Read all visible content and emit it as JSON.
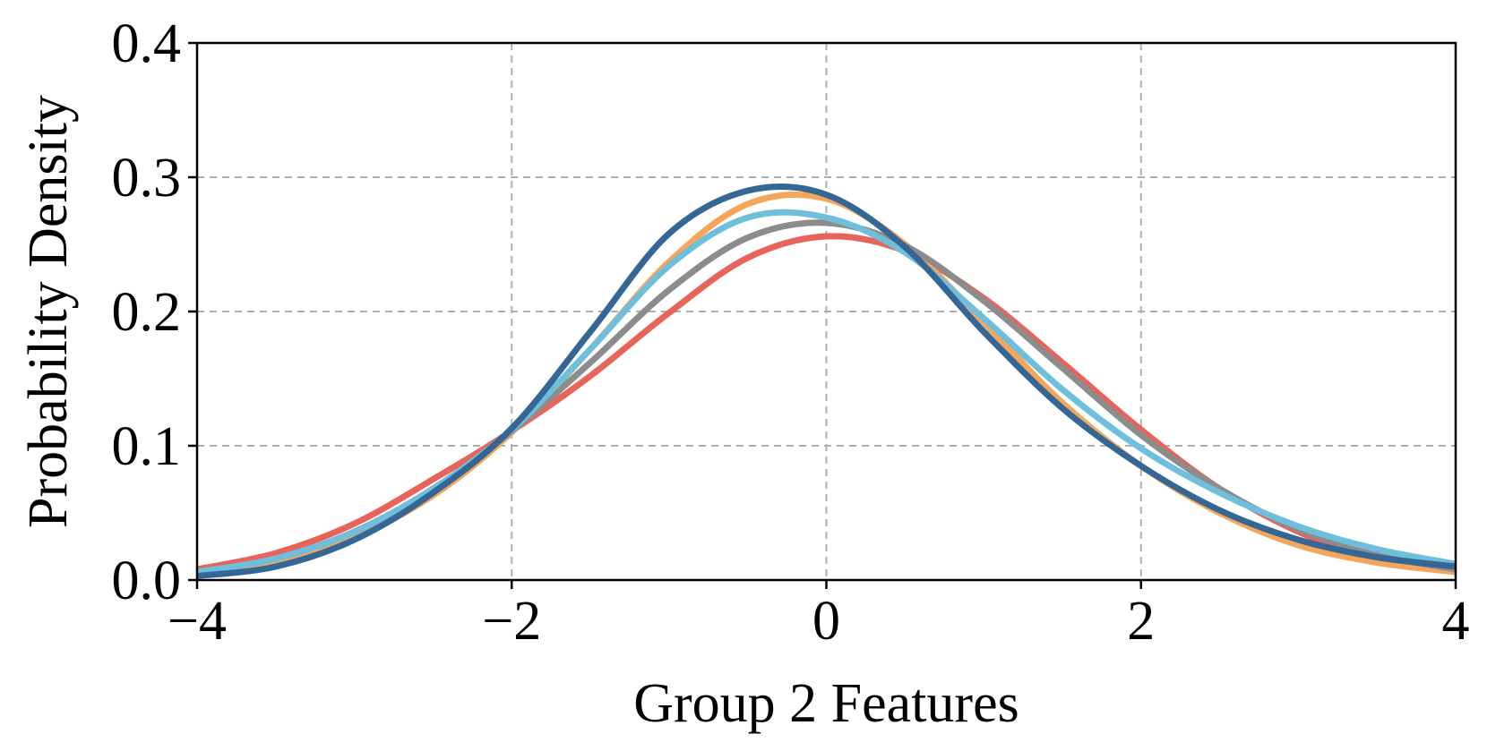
{
  "chart_data": {
    "type": "line",
    "xlabel": "Group 2 Features",
    "ylabel": "Probability Density",
    "xlim": [
      -4,
      4
    ],
    "ylim": [
      0,
      0.4
    ],
    "x_ticks": [
      -4,
      -2,
      0,
      2,
      4
    ],
    "x_tick_labels": [
      "−4",
      "−2",
      "0",
      "2",
      "4"
    ],
    "y_ticks": [
      0.0,
      0.1,
      0.2,
      0.3,
      0.4
    ],
    "y_tick_labels": [
      "0.0",
      "0.1",
      "0.2",
      "0.3",
      "0.4"
    ],
    "grid": true,
    "x": [
      -4.0,
      -3.5,
      -3.0,
      -2.5,
      -2.0,
      -1.5,
      -1.0,
      -0.5,
      0.0,
      0.5,
      1.0,
      1.5,
      2.0,
      2.5,
      3.0,
      3.5,
      4.0
    ],
    "series": [
      {
        "color": "#E8645A",
        "values": [
          0.008,
          0.02,
          0.042,
          0.075,
          0.111,
          0.152,
          0.199,
          0.24,
          0.256,
          0.245,
          0.21,
          0.162,
          0.112,
          0.068,
          0.036,
          0.016,
          0.006
        ]
      },
      {
        "color": "#F5A65B",
        "values": [
          0.005,
          0.014,
          0.032,
          0.063,
          0.11,
          0.172,
          0.237,
          0.28,
          0.284,
          0.25,
          0.192,
          0.132,
          0.085,
          0.05,
          0.026,
          0.013,
          0.006
        ]
      },
      {
        "color": "#8C8C8C",
        "values": [
          0.006,
          0.016,
          0.036,
          0.068,
          0.111,
          0.162,
          0.216,
          0.255,
          0.266,
          0.249,
          0.208,
          0.158,
          0.108,
          0.068,
          0.038,
          0.019,
          0.008
        ]
      },
      {
        "color": "#6FBFDC",
        "values": [
          0.006,
          0.016,
          0.036,
          0.068,
          0.112,
          0.172,
          0.234,
          0.27,
          0.27,
          0.244,
          0.195,
          0.142,
          0.098,
          0.065,
          0.04,
          0.023,
          0.012
        ]
      },
      {
        "color": "#356796",
        "values": [
          0.003,
          0.01,
          0.03,
          0.065,
          0.113,
          0.185,
          0.258,
          0.29,
          0.287,
          0.248,
          0.185,
          0.128,
          0.085,
          0.052,
          0.03,
          0.017,
          0.01
        ]
      }
    ]
  }
}
